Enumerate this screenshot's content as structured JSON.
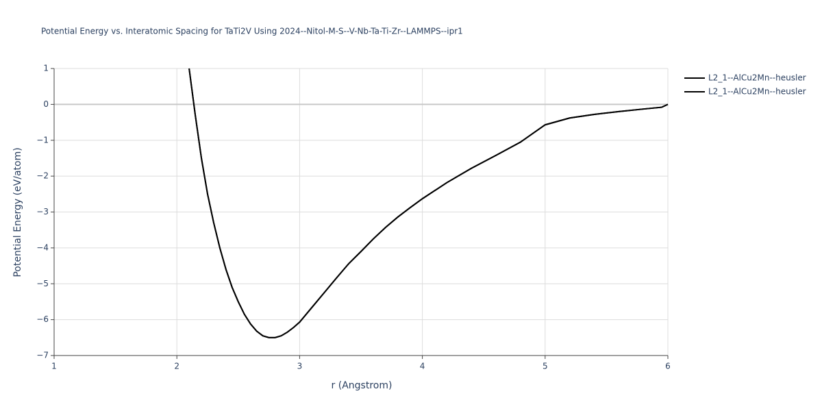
{
  "chart_data": {
    "type": "line",
    "title": "Potential Energy vs. Interatomic Spacing for TaTi2V Using 2024--Nitol-M-S--V-Nb-Ta-Ti-Zr--LAMMPS--ipr1",
    "x_label": "r (Angstrom)",
    "y_label": "Potential Energy (eV/atom)",
    "x": [
      2.1,
      2.15,
      2.2,
      2.25,
      2.3,
      2.35,
      2.4,
      2.45,
      2.5,
      2.55,
      2.6,
      2.65,
      2.7,
      2.75,
      2.8,
      2.85,
      2.9,
      2.95,
      3.0,
      3.1,
      3.2,
      3.3,
      3.4,
      3.5,
      3.6,
      3.7,
      3.8,
      3.9,
      4.0,
      4.2,
      4.4,
      4.6,
      4.8,
      5.0,
      5.2,
      5.4,
      5.6,
      5.8,
      5.95,
      6.0
    ],
    "series": [
      {
        "name": "L2_1--AlCu2Mn--heusler",
        "color": "#000000",
        "values": [
          1.0,
          -0.3,
          -1.5,
          -2.5,
          -3.3,
          -4.0,
          -4.6,
          -5.1,
          -5.5,
          -5.85,
          -6.12,
          -6.32,
          -6.45,
          -6.5,
          -6.5,
          -6.45,
          -6.35,
          -6.22,
          -6.07,
          -5.66,
          -5.25,
          -4.84,
          -4.44,
          -4.1,
          -3.75,
          -3.43,
          -3.14,
          -2.88,
          -2.63,
          -2.18,
          -1.78,
          -1.42,
          -1.05,
          -0.57,
          -0.38,
          -0.28,
          -0.2,
          -0.13,
          -0.08,
          0.0
        ]
      },
      {
        "name": "L2_1--AlCu2Mn--heusler",
        "color": "#000000",
        "values": [
          1.0,
          -0.3,
          -1.5,
          -2.5,
          -3.3,
          -4.0,
          -4.6,
          -5.1,
          -5.5,
          -5.85,
          -6.12,
          -6.32,
          -6.45,
          -6.5,
          -6.5,
          -6.45,
          -6.35,
          -6.22,
          -6.07,
          -5.66,
          -5.25,
          -4.84,
          -4.44,
          -4.1,
          -3.75,
          -3.43,
          -3.14,
          -2.88,
          -2.63,
          -2.18,
          -1.78,
          -1.42,
          -1.05,
          -0.57,
          -0.38,
          -0.28,
          -0.2,
          -0.13,
          -0.08,
          0.0
        ]
      }
    ],
    "xlim": [
      1,
      6
    ],
    "ylim": [
      -7,
      1
    ],
    "xticks": [
      1,
      2,
      3,
      4,
      5,
      6
    ],
    "yticks": [
      1,
      0,
      {
        "value": -1,
        "label": "−1"
      },
      {
        "value": -2,
        "label": "−2"
      },
      {
        "value": -3,
        "label": "−3"
      },
      {
        "value": -4,
        "label": "−4"
      },
      {
        "value": -5,
        "label": "−5"
      },
      {
        "value": -6,
        "label": "−6"
      },
      {
        "value": -7,
        "label": "−7"
      }
    ],
    "grid": true,
    "legend": "top-right"
  }
}
